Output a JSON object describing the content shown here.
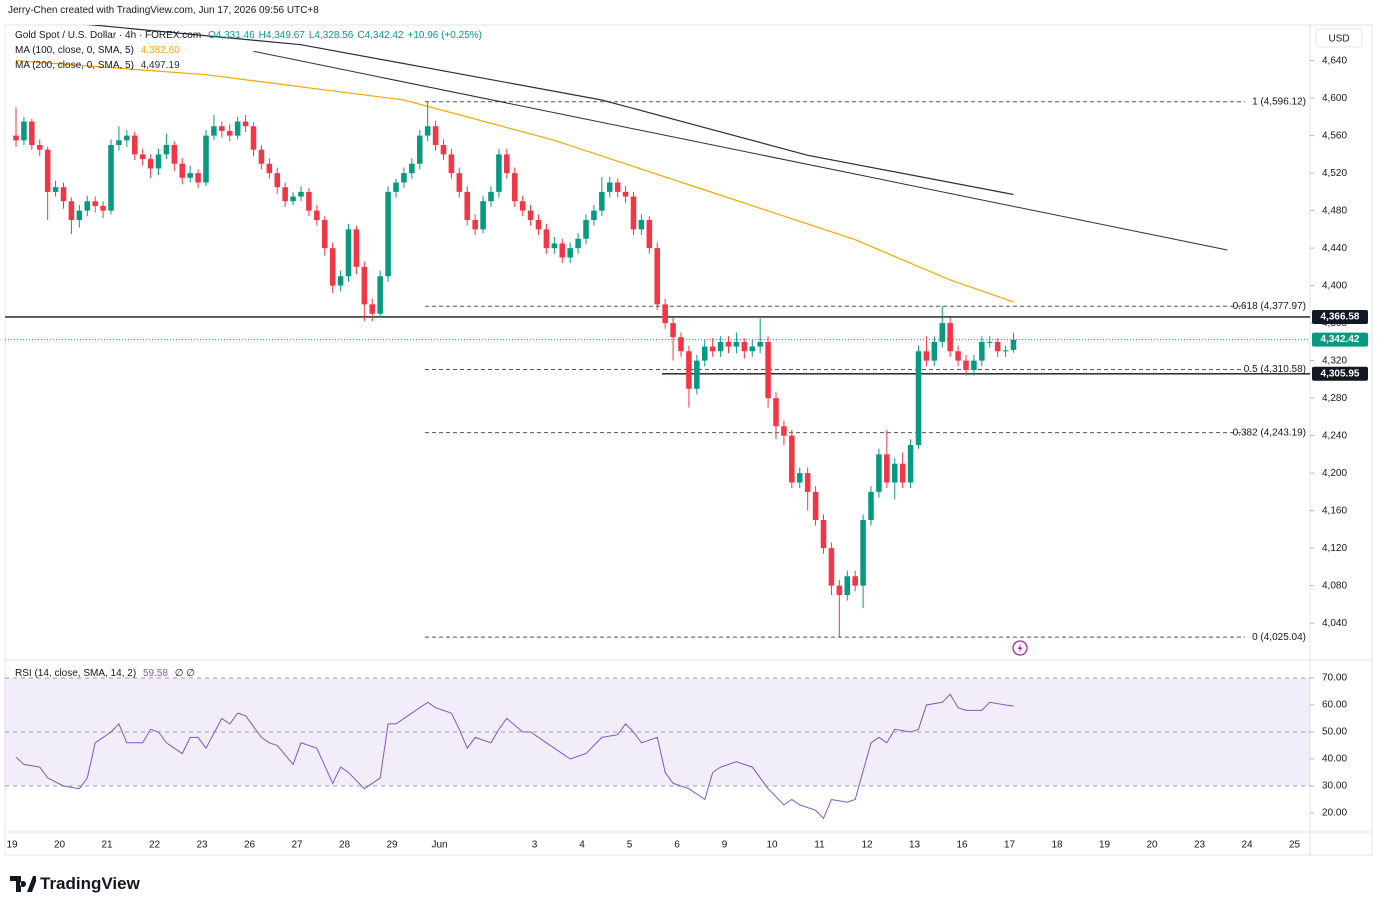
{
  "chart_data": {
    "type": "candlestick",
    "header": "Jerry-Chen created with TradingView.com, Jun 17, 2026 09:56 UTC+8",
    "title": "Gold Spot / U.S. Dollar · 4h · FOREX.com",
    "ohlc_readout": [
      "O4,331.46",
      "H4,349.67",
      "L4,328.56",
      "C4,342.42",
      "+10.96 (+0.25%)"
    ],
    "currency": "USD",
    "brand": "TradingView",
    "categories": [
      "19",
      "20",
      "21",
      "22",
      "23",
      "26",
      "27",
      "28",
      "29",
      "Jun",
      null,
      "3",
      "4",
      "5",
      "6",
      "9",
      "10",
      "11",
      "12",
      "13",
      "16",
      "17",
      "18",
      "19",
      "20",
      "23",
      "24",
      "25"
    ],
    "up_color": "#089981",
    "down_color": "#f23645",
    "candles": [
      [
        4560,
        4590,
        4548,
        4555
      ],
      [
        4555,
        4580,
        4550,
        4575
      ],
      [
        4575,
        4578,
        4545,
        4550
      ],
      [
        4550,
        4556,
        4538,
        4545
      ],
      [
        4545,
        4548,
        4470,
        4500
      ],
      [
        4500,
        4512,
        4495,
        4505
      ],
      [
        4505,
        4510,
        4482,
        4490
      ],
      [
        4490,
        4494,
        4455,
        4470
      ],
      [
        4470,
        4486,
        4462,
        4480
      ],
      [
        4480,
        4496,
        4474,
        4490
      ],
      [
        4490,
        4495,
        4478,
        4485
      ],
      [
        4485,
        4490,
        4472,
        4480
      ],
      [
        4480,
        4556,
        4476,
        4550
      ],
      [
        4550,
        4570,
        4544,
        4555
      ],
      [
        4555,
        4566,
        4548,
        4560
      ],
      [
        4560,
        4564,
        4534,
        4540
      ],
      [
        4540,
        4546,
        4528,
        4535
      ],
      [
        4535,
        4540,
        4515,
        4525
      ],
      [
        4525,
        4546,
        4518,
        4540
      ],
      [
        4540,
        4562,
        4535,
        4550
      ],
      [
        4550,
        4554,
        4522,
        4530
      ],
      [
        4530,
        4536,
        4508,
        4515
      ],
      [
        4515,
        4528,
        4510,
        4520
      ],
      [
        4520,
        4524,
        4504,
        4510
      ],
      [
        4510,
        4566,
        4506,
        4560
      ],
      [
        4560,
        4582,
        4555,
        4570
      ],
      [
        4570,
        4575,
        4558,
        4565
      ],
      [
        4565,
        4572,
        4554,
        4560
      ],
      [
        4560,
        4580,
        4556,
        4575
      ],
      [
        4575,
        4582,
        4564,
        4570
      ],
      [
        4570,
        4574,
        4538,
        4545
      ],
      [
        4545,
        4550,
        4524,
        4530
      ],
      [
        4530,
        4536,
        4514,
        4520
      ],
      [
        4520,
        4526,
        4498,
        4505
      ],
      [
        4505,
        4510,
        4484,
        4490
      ],
      [
        4490,
        4500,
        4486,
        4495
      ],
      [
        4495,
        4506,
        4490,
        4500
      ],
      [
        4500,
        4504,
        4474,
        4480
      ],
      [
        4480,
        4486,
        4464,
        4470
      ],
      [
        4470,
        4474,
        4432,
        4440
      ],
      [
        4440,
        4446,
        4392,
        4400
      ],
      [
        4400,
        4416,
        4394,
        4410
      ],
      [
        4410,
        4466,
        4404,
        4460
      ],
      [
        4460,
        4464,
        4412,
        4420
      ],
      [
        4420,
        4426,
        4362,
        4380
      ],
      [
        4380,
        4386,
        4362,
        4370
      ],
      [
        4370,
        4416,
        4366,
        4410
      ],
      [
        4410,
        4506,
        4404,
        4500
      ],
      [
        4500,
        4514,
        4494,
        4510
      ],
      [
        4510,
        4526,
        4504,
        4520
      ],
      [
        4520,
        4536,
        4514,
        4530
      ],
      [
        4530,
        4566,
        4524,
        4560
      ],
      [
        4560,
        4596.12,
        4554,
        4570
      ],
      [
        4570,
        4576,
        4544,
        4550
      ],
      [
        4550,
        4556,
        4534,
        4540
      ],
      [
        4540,
        4546,
        4514,
        4520
      ],
      [
        4520,
        4526,
        4494,
        4500
      ],
      [
        4500,
        4506,
        4464,
        4470
      ],
      [
        4470,
        4476,
        4454,
        4460
      ],
      [
        4460,
        4496,
        4456,
        4490
      ],
      [
        4490,
        4506,
        4484,
        4500
      ],
      [
        4500,
        4546,
        4494,
        4540
      ],
      [
        4540,
        4546,
        4514,
        4520
      ],
      [
        4520,
        4526,
        4484,
        4490
      ],
      [
        4490,
        4496,
        4474,
        4480
      ],
      [
        4480,
        4486,
        4464,
        4470
      ],
      [
        4470,
        4476,
        4454,
        4460
      ],
      [
        4460,
        4466,
        4434,
        4440
      ],
      [
        4440,
        4452,
        4434,
        4445
      ],
      [
        4445,
        4450,
        4424,
        4430
      ],
      [
        4430,
        4446,
        4424,
        4440
      ],
      [
        4440,
        4456,
        4434,
        4450
      ],
      [
        4450,
        4476,
        4444,
        4470
      ],
      [
        4470,
        4486,
        4464,
        4480
      ],
      [
        4480,
        4516,
        4474,
        4500
      ],
      [
        4500,
        4516,
        4494,
        4510
      ],
      [
        4510,
        4514,
        4494,
        4500
      ],
      [
        4500,
        4506,
        4488,
        4495
      ],
      [
        4495,
        4500,
        4454,
        4460
      ],
      [
        4460,
        4476,
        4454,
        4470
      ],
      [
        4470,
        4474,
        4434,
        4440
      ],
      [
        4440,
        4446,
        4374,
        4380
      ],
      [
        4380,
        4386,
        4354,
        4360
      ],
      [
        4360,
        4366,
        4320,
        4345
      ],
      [
        4345,
        4350,
        4324,
        4330
      ],
      [
        4330,
        4336,
        4270,
        4290
      ],
      [
        4290,
        4326,
        4284,
        4320
      ],
      [
        4320,
        4342,
        4314,
        4335
      ],
      [
        4335,
        4344,
        4324,
        4330
      ],
      [
        4330,
        4346,
        4324,
        4340
      ],
      [
        4340,
        4346,
        4328,
        4335
      ],
      [
        4335,
        4350,
        4328,
        4340
      ],
      [
        4340,
        4344,
        4322,
        4330
      ],
      [
        4330,
        4342,
        4324,
        4335
      ],
      [
        4335,
        4365,
        4328,
        4340
      ],
      [
        4340,
        4346,
        4270,
        4280
      ],
      [
        4280,
        4286,
        4236,
        4250
      ],
      [
        4250,
        4256,
        4230,
        4240
      ],
      [
        4240,
        4246,
        4184,
        4190
      ],
      [
        4190,
        4206,
        4184,
        4200
      ],
      [
        4200,
        4206,
        4160,
        4180
      ],
      [
        4180,
        4186,
        4144,
        4150
      ],
      [
        4150,
        4156,
        4114,
        4120
      ],
      [
        4120,
        4126,
        4070,
        4080
      ],
      [
        4080,
        4086,
        4025.04,
        4070
      ],
      [
        4070,
        4096,
        4064,
        4090
      ],
      [
        4090,
        4096,
        4074,
        4080
      ],
      [
        4080,
        4156,
        4056,
        4150
      ],
      [
        4150,
        4186,
        4144,
        4180
      ],
      [
        4180,
        4226,
        4174,
        4220
      ],
      [
        4220,
        4246,
        4184,
        4190
      ],
      [
        4190,
        4216,
        4172,
        4210
      ],
      [
        4210,
        4222,
        4184,
        4190
      ],
      [
        4190,
        4236,
        4184,
        4230
      ],
      [
        4230,
        4336,
        4226,
        4330
      ],
      [
        4330,
        4346,
        4314,
        4320
      ],
      [
        4320,
        4346,
        4314,
        4340
      ],
      [
        4340,
        4378,
        4334,
        4360
      ],
      [
        4360,
        4366,
        4324,
        4330
      ],
      [
        4330,
        4336,
        4314,
        4320
      ],
      [
        4320,
        4326,
        4304,
        4310
      ],
      [
        4310,
        4326,
        4304,
        4320
      ],
      [
        4320,
        4346,
        4314,
        4340
      ],
      [
        4340,
        4346,
        4334,
        4340
      ],
      [
        4340,
        4344,
        4324,
        4330
      ],
      [
        4330,
        4336,
        4324,
        4331
      ],
      [
        4331.46,
        4349.67,
        4328.56,
        4342.42
      ]
    ],
    "ylim": [
      4006,
      4678
    ],
    "yticks": [
      {
        "value": 4040,
        "label": "4,040"
      },
      {
        "value": 4080,
        "label": "4,080"
      },
      {
        "value": 4120,
        "label": "4,120"
      },
      {
        "value": 4160,
        "label": "4,160"
      },
      {
        "value": 4200,
        "label": "4,200"
      },
      {
        "value": 4240,
        "label": "4,240"
      },
      {
        "value": 4280,
        "label": "4,280"
      },
      {
        "value": 4320,
        "label": "4,320"
      },
      {
        "value": 4360,
        "label": "4,360"
      },
      {
        "value": 4400,
        "label": "4,400"
      },
      {
        "value": 4440,
        "label": "4,440"
      },
      {
        "value": 4480,
        "label": "4,480"
      },
      {
        "value": 4520,
        "label": "4,520"
      },
      {
        "value": 4560,
        "label": "4,560"
      },
      {
        "value": 4600,
        "label": "4,600"
      },
      {
        "value": 4640,
        "label": "4,640"
      }
    ],
    "moving_averages": [
      {
        "name": "MA (100, close, 0, SMA, 5)",
        "value_label": "4,382.60",
        "color": "#f7a600",
        "x": [
          0,
          24,
          49,
          68,
          87,
          106,
          118,
          126
        ],
        "values": [
          4640,
          4625,
          4598,
          4555,
          4502,
          4449,
          4406,
          4382.6
        ]
      },
      {
        "name": "MA (200, close, 0, SMA, 5)",
        "value_label": "4,497.19",
        "color": "#2a2e39",
        "x": [
          6,
          36,
          74,
          100,
          126
        ],
        "values": [
          4681,
          4657,
          4598,
          4539,
          4497.19
        ]
      }
    ],
    "trend_line": {
      "color": "#2a2e39",
      "x": [
        30,
        153
      ],
      "values": [
        4650,
        4438
      ]
    },
    "fib_color": "#555",
    "fib_levels": [
      {
        "value": 4596.12,
        "label": "1 (4,596.12)"
      },
      {
        "value": 4377.97,
        "label": "0.618 (4,377.97)"
      },
      {
        "value": 4310.58,
        "label": "0.5 (4,310.58)"
      },
      {
        "value": 4243.19,
        "label": "0.382 (4,243.19)"
      },
      {
        "value": 4025.04,
        "label": "0 (4,025.04)"
      }
    ],
    "price_lines": [
      {
        "value": 4366.58,
        "label": "4,366.58",
        "color": "#131722",
        "style": "solid"
      },
      {
        "value": 4342.42,
        "label": "4,342.42",
        "color": "#089981",
        "style": "dotted"
      },
      {
        "value": 4305.95,
        "label": "4,305.95",
        "color": "#131722",
        "style": "solid"
      }
    ],
    "rsi": {
      "name": "RSI (14, close, SMA, 14, 2)",
      "value_label": "59.58",
      "extra": "∅ ∅",
      "color": "#7e57c2",
      "ylim": [
        13.7,
        74.8
      ],
      "yticks": [
        {
          "value": 20,
          "label": "20.00"
        },
        {
          "value": 30,
          "label": "30.00"
        },
        {
          "value": 40,
          "label": "40.00"
        },
        {
          "value": 50,
          "label": "50.00"
        },
        {
          "value": 60,
          "label": "60.00"
        },
        {
          "value": 70,
          "label": "70.00"
        }
      ],
      "band": [
        30,
        70
      ],
      "midline": 50,
      "x": [
        0,
        1,
        3,
        4,
        6,
        8,
        9,
        10,
        12,
        13,
        14,
        16,
        17,
        18,
        19,
        21,
        22,
        23,
        24,
        26,
        27,
        28,
        29,
        31,
        32,
        33,
        35,
        36,
        38,
        40,
        41,
        42,
        44,
        46,
        47,
        48,
        50,
        52,
        53,
        55,
        56,
        57,
        58,
        60,
        61,
        62,
        64,
        65,
        67,
        69,
        70,
        72,
        74,
        76,
        77,
        78,
        79,
        81,
        82,
        83,
        85,
        87,
        88,
        89,
        91,
        93,
        95,
        97,
        98,
        99,
        101,
        102,
        103,
        105,
        106,
        108,
        109,
        110,
        111,
        113,
        114,
        115,
        117,
        118,
        119,
        120,
        122,
        123,
        125,
        126
      ],
      "values": [
        40.7,
        38,
        37,
        33,
        30,
        29,
        33,
        46,
        50,
        53,
        46,
        46,
        51,
        50,
        46,
        42,
        48,
        48,
        44,
        55,
        53,
        57,
        56,
        48,
        46,
        45,
        38,
        46,
        44,
        31,
        37,
        35,
        29,
        33,
        53,
        53,
        57,
        61,
        59,
        57,
        51,
        44,
        48,
        46,
        51,
        55,
        50,
        50,
        46,
        42,
        40,
        42,
        48,
        49,
        53,
        50,
        46,
        48,
        35,
        31,
        29,
        25,
        35,
        37,
        39,
        37,
        29,
        23,
        25,
        23,
        21,
        18,
        25,
        24,
        25,
        46,
        48,
        46,
        51,
        50,
        51,
        60,
        61,
        64,
        59,
        58,
        58,
        61,
        60,
        59.58
      ]
    }
  }
}
